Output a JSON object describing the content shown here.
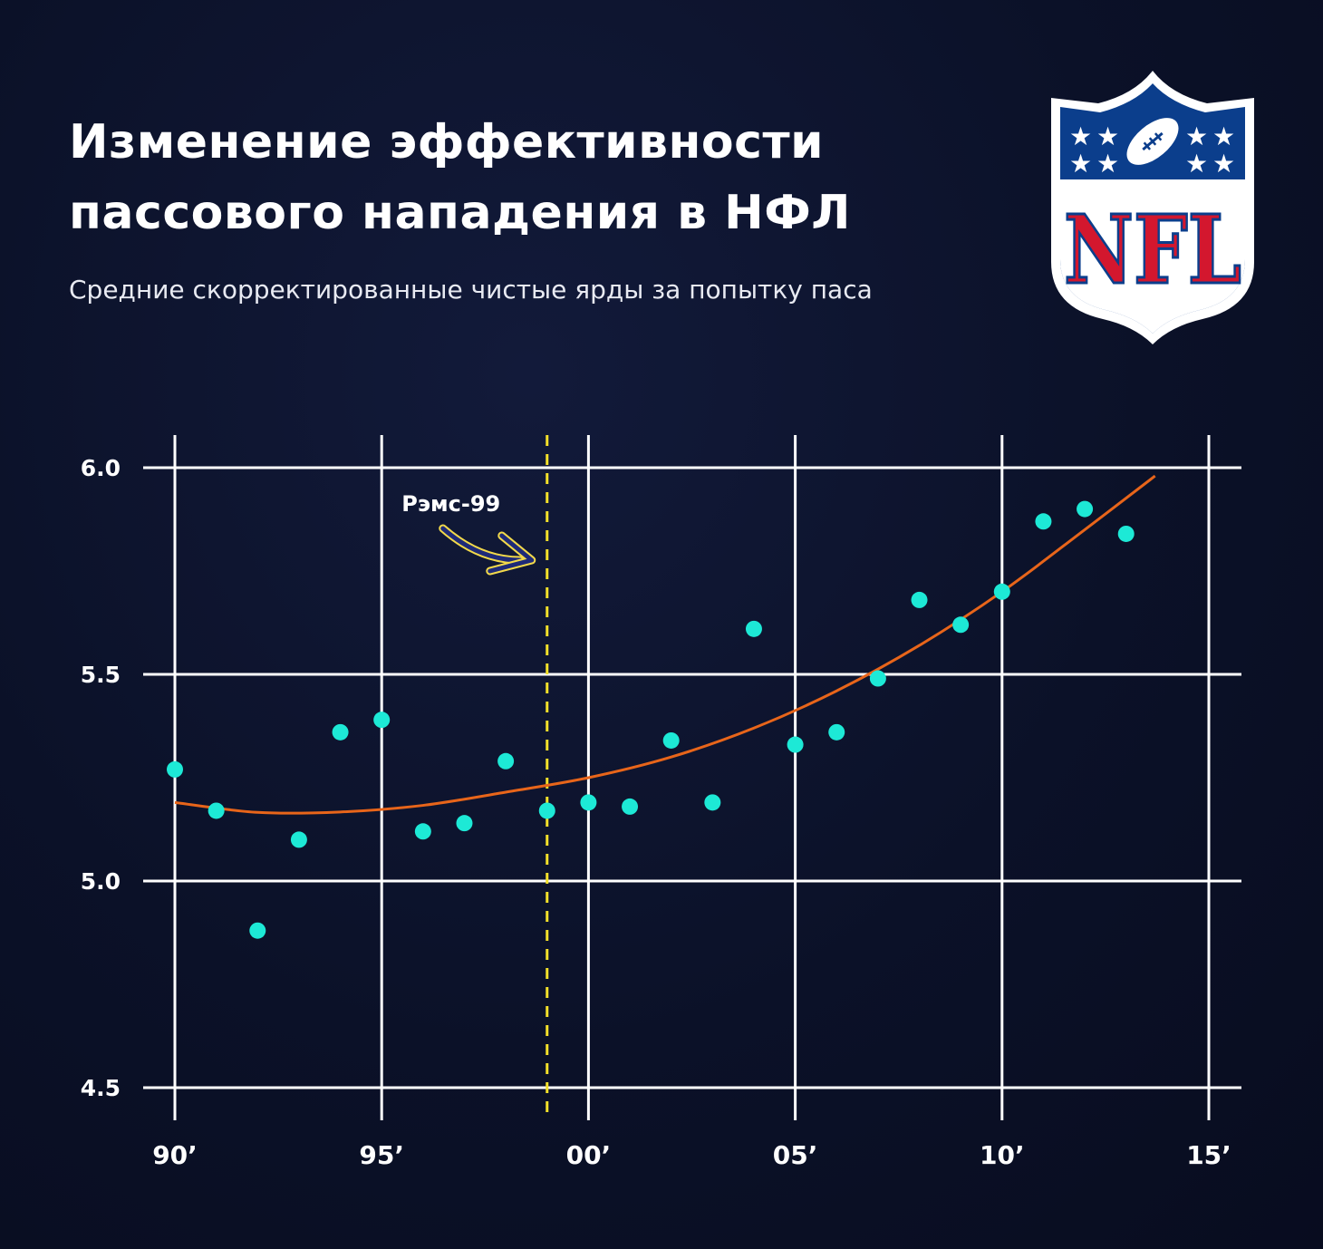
{
  "header": {
    "title_line1": "Изменение эффективности",
    "title_line2": "пассового нападения в НФЛ",
    "subtitle": "Средние скорректированные чистые ярды за попытку паса"
  },
  "logo": {
    "text": "NFL",
    "icon": "nfl-shield-logo"
  },
  "colors": {
    "background": "#0b1128",
    "grid": "#ffffff",
    "points": "#1de9d6",
    "trend": "#e8651a",
    "marker_line": "#f5e12a",
    "arrow": "#1e2a78",
    "logo_blue": "#0b3e8c",
    "logo_red": "#d3172e"
  },
  "chart_data": {
    "type": "scatter",
    "title": "Изменение эффективности пассового нападения в НФЛ",
    "subtitle": "Средние скорректированные чистые ярды за попытку паса",
    "xlabel": "",
    "ylabel": "",
    "xlim": [
      1990,
      2015
    ],
    "ylim": [
      4.5,
      6.0
    ],
    "x_ticks": [
      1990,
      1995,
      2000,
      2005,
      2010,
      2015
    ],
    "x_tick_labels": [
      "90’",
      "95’",
      "00’",
      "05’",
      "10’",
      "15’"
    ],
    "y_ticks": [
      4.5,
      5.0,
      5.5,
      6.0
    ],
    "y_tick_labels": [
      "4.5",
      "5.0",
      "5.5",
      "6.0"
    ],
    "grid": true,
    "series": [
      {
        "type": "scatter",
        "x": [
          1990,
          1991,
          1992,
          1993,
          1994,
          1995,
          1996,
          1997,
          1998,
          1999,
          2000,
          2001,
          2002,
          2003,
          2004,
          2005,
          2006,
          2007,
          2008,
          2009,
          2010,
          2011,
          2012,
          2013
        ],
        "y": [
          5.27,
          5.17,
          4.88,
          5.1,
          5.36,
          5.39,
          5.12,
          5.14,
          5.29,
          5.17,
          5.19,
          5.18,
          5.34,
          5.19,
          5.61,
          5.33,
          5.36,
          5.49,
          5.68,
          5.62,
          5.7,
          5.87,
          5.9,
          5.84
        ]
      },
      {
        "type": "line",
        "x": [
          1990,
          1992,
          1994,
          1996,
          1998,
          2000,
          2002,
          2004,
          2006,
          2008,
          2010,
          2012,
          2013.7
        ],
        "y": [
          5.19,
          5.166,
          5.167,
          5.183,
          5.215,
          5.25,
          5.3,
          5.37,
          5.46,
          5.57,
          5.7,
          5.85,
          5.98
        ]
      }
    ],
    "annotations": [
      {
        "label": "Рэмс-99",
        "x": 1999,
        "type": "vertical-dashed-line"
      }
    ]
  }
}
